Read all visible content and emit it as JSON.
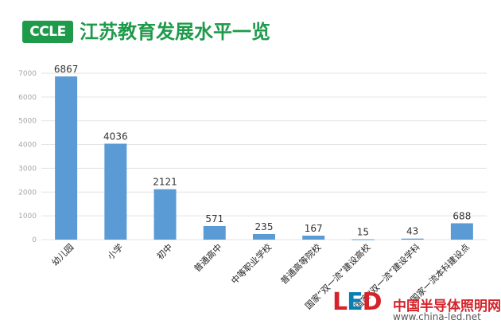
{
  "header": {
    "logo_text": "CCLE",
    "title": "江苏教育发展水平一览"
  },
  "watermark": {
    "logo_text_1": "L",
    "logo_text_2": "E",
    "logo_text_3": "D",
    "site_name": "中国半导体照明网",
    "site_url": "www.china-led.net"
  },
  "colors": {
    "bar": "#5b9bd5",
    "brand_green": "#1f9a4b",
    "axis_text": "#a6a6a6",
    "grid": "#e3e3e3"
  },
  "chart_data": {
    "type": "bar",
    "title": "江苏教育发展水平一览",
    "xlabel": "",
    "ylabel": "",
    "categories": [
      "幼儿园",
      "小学",
      "初中",
      "普通高中",
      "中等职业学校",
      "普通高等院校",
      "国家“双一流”建设高校",
      "国家“双一流”建设学科",
      "国家一流本科建设点"
    ],
    "values": [
      6867,
      4036,
      2121,
      571,
      235,
      167,
      15,
      43,
      688
    ],
    "data_labels": [
      "6867",
      "4036",
      "2121",
      "571",
      "235",
      "167",
      "15",
      "43",
      "688"
    ],
    "ylim": [
      0,
      7000
    ],
    "yticks": [
      0,
      1000,
      2000,
      3000,
      4000,
      5000,
      6000,
      7000
    ],
    "grid": true,
    "legend": "none"
  }
}
